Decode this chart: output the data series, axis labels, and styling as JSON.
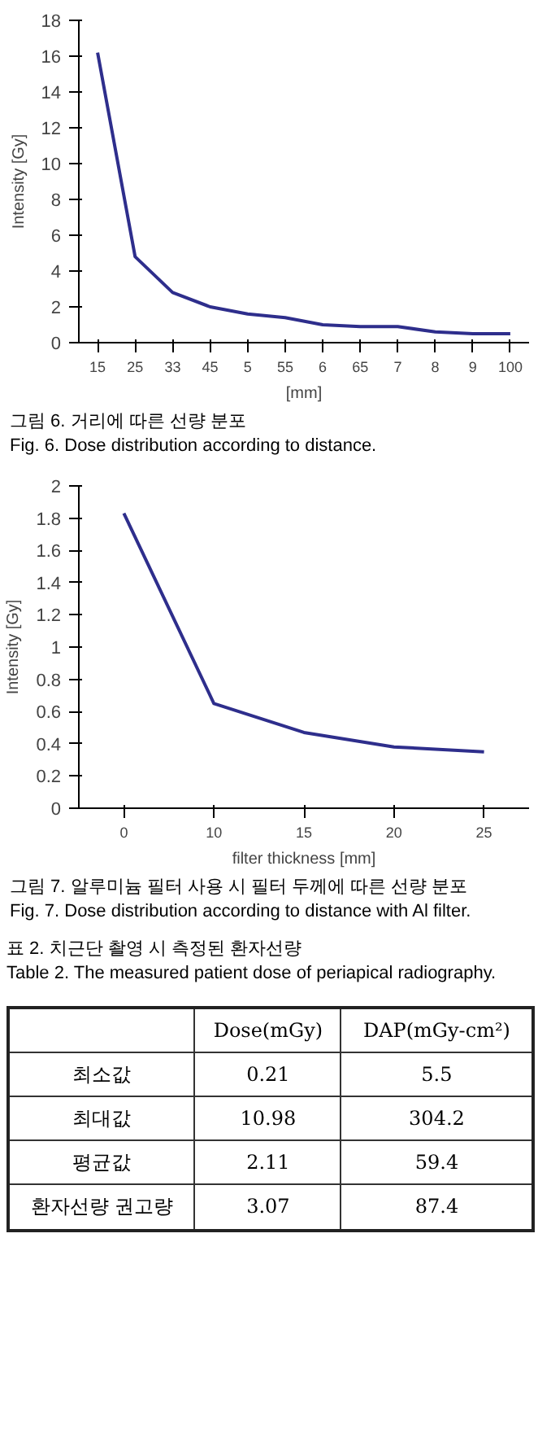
{
  "chart_data": [
    {
      "type": "line",
      "title": "그림 6. 거리에 따른 선량 분포",
      "subtitle": "Fig. 6. Dose distribution according to distance.",
      "xlabel": "[mm]",
      "ylabel": "Intensity [Gy]",
      "categories": [
        "15",
        "25",
        "33",
        "45",
        "5",
        "55",
        "6",
        "65",
        "7",
        "8",
        "9",
        "100"
      ],
      "series": [
        {
          "color": "#2e2e8c",
          "values": [
            16.2,
            4.8,
            2.8,
            2.0,
            1.6,
            1.4,
            1.0,
            0.9,
            0.9,
            0.6,
            0.5,
            0.5
          ]
        }
      ],
      "ylim": [
        0,
        18
      ],
      "yticks": [
        0,
        2,
        4,
        6,
        8,
        10,
        12,
        14,
        16,
        18
      ],
      "line_style": "solid"
    },
    {
      "type": "line",
      "title": "그림 7. 알루미늄 필터 사용 시 필터 두께에 따른 선량 분포",
      "subtitle": "Fig. 7. Dose distribution according to distance with Al filter.",
      "xlabel": "filter thickness [mm]",
      "ylabel": "Intensity [Gy]",
      "categories": [
        "0",
        "10",
        "15",
        "20",
        "25"
      ],
      "series": [
        {
          "color": "#2e2e8c",
          "values": [
            1.83,
            0.65,
            0.47,
            0.38,
            0.35
          ]
        }
      ],
      "ylim": [
        0,
        2
      ],
      "yticks": [
        0,
        0.2,
        0.4,
        0.6,
        0.8,
        1,
        1.2,
        1.4,
        1.6,
        1.8,
        2
      ],
      "line_style": "solid"
    },
    {
      "type": "other",
      "title": "표 2. 치근단 촬영 시 측정된 환자선량",
      "subtitle": "Table 2. The measured patient dose of periapical radiography.",
      "annotations": [
        "Dose(mGy)",
        "DAP(mGy-cm²)",
        "최소값",
        "0.21",
        "5.5",
        "최대값",
        "10.98",
        "304.2",
        "평균값",
        "2.11",
        "59.4",
        "환자선량 권고량",
        "3.07",
        "87.4"
      ]
    }
  ]
}
